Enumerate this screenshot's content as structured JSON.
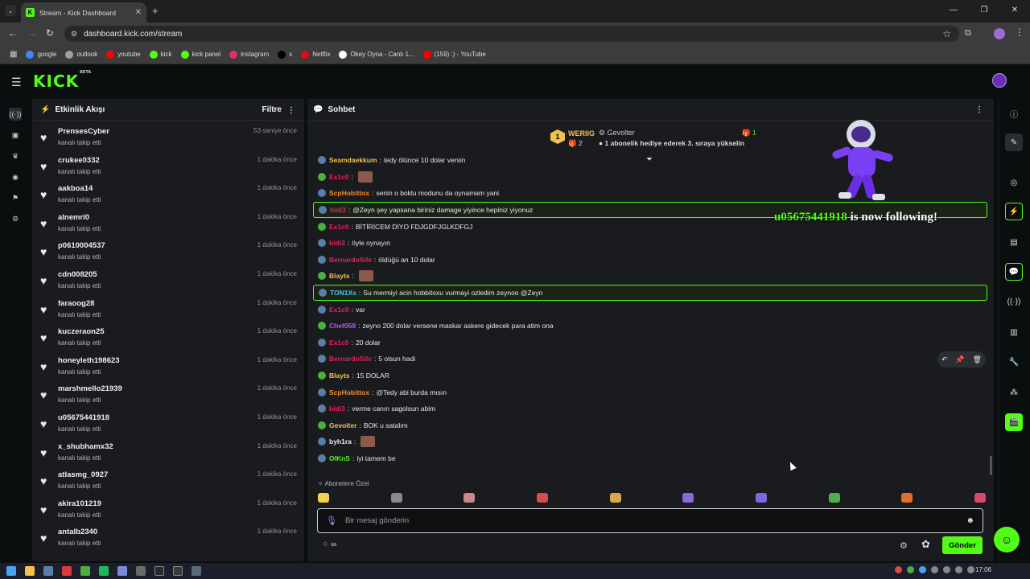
{
  "browser": {
    "tab_title": "Stream - Kick Dashboard",
    "url": "dashboard.kick.com/stream",
    "bookmarks": [
      {
        "label": "google",
        "color": "#4285f4"
      },
      {
        "label": "outlook",
        "color": "#9aa0a6"
      },
      {
        "label": "youtube",
        "color": "#ff0000"
      },
      {
        "label": "kick",
        "color": "#53fc18"
      },
      {
        "label": "kick panel",
        "color": "#53fc18"
      },
      {
        "label": "instagram",
        "color": "#e1306c"
      },
      {
        "label": "x",
        "color": "#000000"
      },
      {
        "label": "Netflix",
        "color": "#e50914"
      },
      {
        "label": "Okey Oyna - Canlı 1...",
        "color": "#ffffff"
      },
      {
        "label": "(159) :) - YouTube",
        "color": "#ff0000"
      }
    ]
  },
  "header": {
    "logo": "KICK",
    "beta": "BETA"
  },
  "activity": {
    "title": "Etkinlik Akışı",
    "filter_label": "Filtre",
    "items": [
      {
        "name": "PrensesCyber",
        "action": "kanalı takip etti",
        "time": "53 saniye önce"
      },
      {
        "name": "crukee0332",
        "action": "kanalı takip etti",
        "time": "1 dakika önce"
      },
      {
        "name": "aakboa14",
        "action": "kanalı takip etti",
        "time": "1 dakika önce"
      },
      {
        "name": "alnemri0",
        "action": "kanalı takip etti",
        "time": "1 dakika önce"
      },
      {
        "name": "p0610004537",
        "action": "kanalı takip etti",
        "time": "1 dakika önce"
      },
      {
        "name": "cdn008205",
        "action": "kanalı takip etti",
        "time": "1 dakika önce"
      },
      {
        "name": "faraoog28",
        "action": "kanalı takip etti",
        "time": "1 dakika önce"
      },
      {
        "name": "kuczeraon25",
        "action": "kanalı takip etti",
        "time": "1 dakika önce"
      },
      {
        "name": "honeyleth198623",
        "action": "kanalı takip etti",
        "time": "1 dakika önce"
      },
      {
        "name": "marshmello21939",
        "action": "kanalı takip etti",
        "time": "1 dakika önce"
      },
      {
        "name": "u05675441918",
        "action": "kanalı takip etti",
        "time": "1 dakika önce"
      },
      {
        "name": "x_shubhamx32",
        "action": "kanalı takip etti",
        "time": "1 dakika önce"
      },
      {
        "name": "atlasmg_0927",
        "action": "kanalı takip etti",
        "time": "1 dakika önce"
      },
      {
        "name": "akira101219",
        "action": "kanalı takip etti",
        "time": "1 dakika önce"
      },
      {
        "name": "antalb2340",
        "action": "kanalı takip etti",
        "time": "1 dakika önce"
      }
    ]
  },
  "chat": {
    "title": "Sohbet",
    "pinned": {
      "rank": "1",
      "user1": "WERIIG",
      "count1": "2",
      "user2": "Gevolter",
      "count2": "1",
      "message": "1 abonelik hediye ederek 3. sıraya yükselin"
    },
    "messages": [
      {
        "user": "Seamdaekkum",
        "color": "#f2c14e",
        "text": "tedy ölünce 10 dolar versin",
        "emote": false,
        "highlight": false
      },
      {
        "user": "Ex1c0",
        "color": "#e0245e",
        "text": "",
        "emote": true,
        "highlight": false
      },
      {
        "user": "ScpHobittox",
        "color": "#f28c28",
        "text": "senin o boklu modunu da oynamam yani",
        "emote": false,
        "highlight": false
      },
      {
        "user": "bidi3",
        "color": "#e0245e",
        "text": "@Zeyn şey yapsana biriniz damage yiyince hepiniz yiyonuz",
        "emote": false,
        "highlight": true
      },
      {
        "user": "Ex1c0",
        "color": "#e0245e",
        "text": "BİTİRİCEM DİYO FDJGDFJGLKDFGJ",
        "emote": false,
        "highlight": false
      },
      {
        "user": "bidi3",
        "color": "#e0245e",
        "text": "öyle oynayın",
        "emote": false,
        "highlight": false
      },
      {
        "user": "BernardoSilv",
        "color": "#e0245e",
        "text": "öldüğü an 10 dolar",
        "emote": false,
        "highlight": false
      },
      {
        "user": "Blayts",
        "color": "#f2c14e",
        "text": "",
        "emote": true,
        "highlight": false
      },
      {
        "user": "TON1Xs",
        "color": "#4fc3f7",
        "text": "Su mermiyi acin hobbitoxu vurmayi ozledim zeynoo @Zeyn",
        "emote": false,
        "highlight": true
      },
      {
        "user": "Ex1c0",
        "color": "#e0245e",
        "text": "var",
        "emote": false,
        "highlight": false
      },
      {
        "user": "Chef058",
        "color": "#b05cf2",
        "text": "zeyno 200 dolar versene maskar askere gidecek para atim ona",
        "emote": false,
        "highlight": false
      },
      {
        "user": "Ex1c0",
        "color": "#e0245e",
        "text": "20 dolar",
        "emote": false,
        "highlight": false
      },
      {
        "user": "BernardoSilv",
        "color": "#e0245e",
        "text": "5 olsun hadi",
        "emote": false,
        "highlight": false
      },
      {
        "user": "Blayts",
        "color": "#f2c14e",
        "text": "15 DOLAR",
        "emote": false,
        "highlight": false
      },
      {
        "user": "ScpHobittox",
        "color": "#f28c28",
        "text": "@Tedy abi burda mısın",
        "emote": false,
        "highlight": false
      },
      {
        "user": "bidi3",
        "color": "#e0245e",
        "text": "verme canın sagolsun abim",
        "emote": false,
        "highlight": false
      },
      {
        "user": "Gevolter",
        "color": "#f2c14e",
        "text": "BOK u satalım",
        "emote": false,
        "highlight": false
      },
      {
        "user": "byh1ra",
        "color": "#e8e8e8",
        "text": "",
        "emote": true,
        "highlight": false
      },
      {
        "user": "OlKnS",
        "color": "#53fc18",
        "text": "iyi tamem be",
        "emote": false,
        "highlight": false
      }
    ],
    "follow_alert_user": "u05675441918",
    "follow_alert_text": "is now following!",
    "subscriber_section": "Abonelere Özel",
    "input_placeholder": "Bir mesaj gönderin",
    "send_label": "Gönder",
    "points_label": "∞"
  },
  "taskbar": {
    "time": "17:06"
  }
}
